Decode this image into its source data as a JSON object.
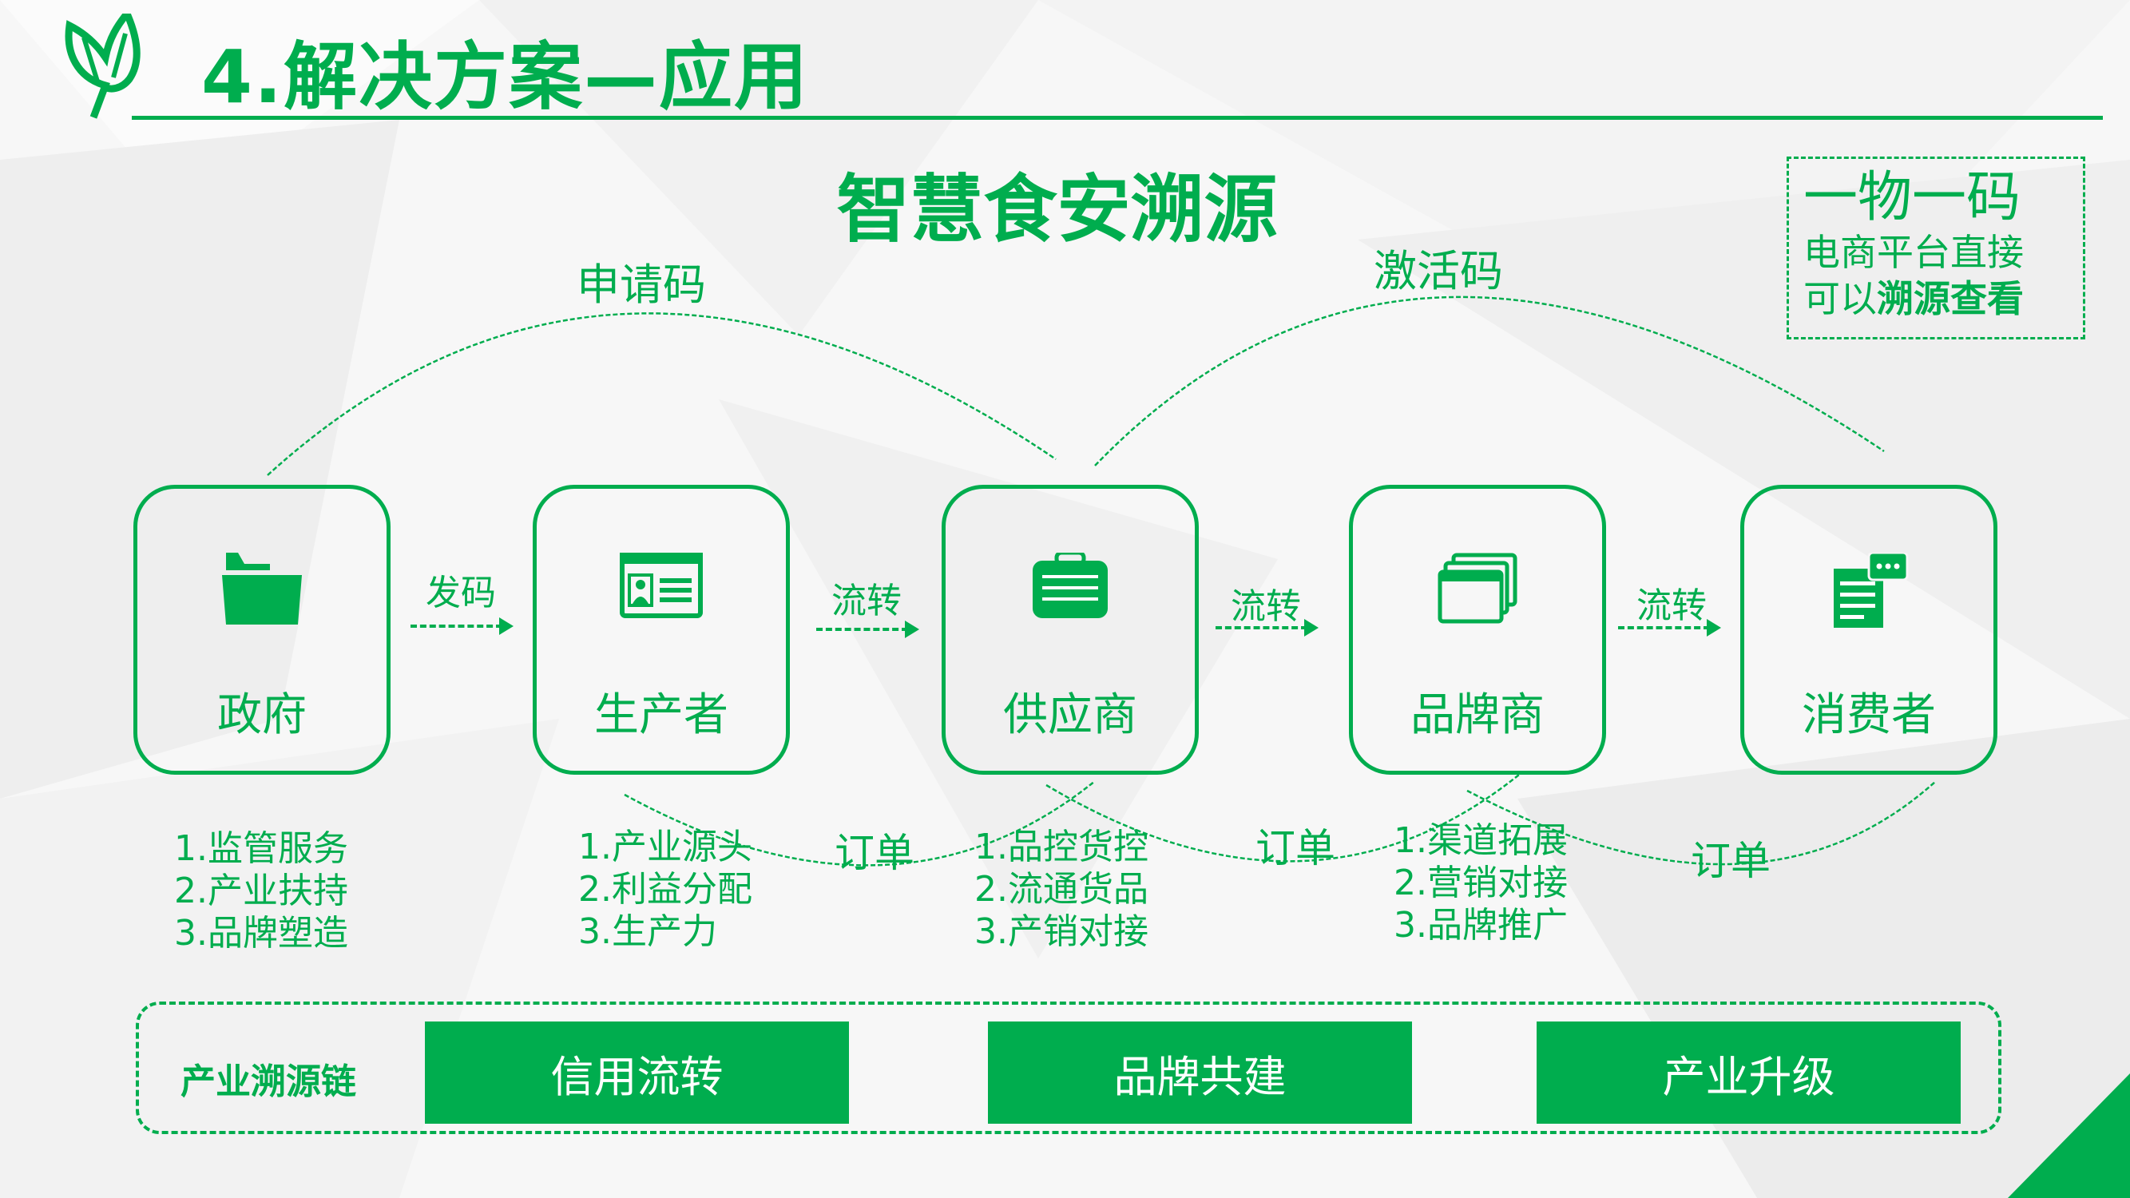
{
  "header": {
    "title": "4.解决方案—应用",
    "logo_icon": "leaf-icon"
  },
  "diagram": {
    "title": "智慧食安溯源",
    "code_note": {
      "line1": "一物一码",
      "line2": "电商平台直接",
      "line3_prefix": "可以",
      "line3_bold": "溯源查看"
    },
    "arc_labels": {
      "apply": "申请码",
      "activate": "激活码"
    },
    "nodes": [
      {
        "label": "政府",
        "icon": "folder-icon",
        "items": [
          "1.监管服务",
          "2.产业扶持",
          "3.品牌塑造"
        ]
      },
      {
        "label": "生产者",
        "icon": "id-card-icon",
        "items": [
          "1.产业源头",
          "2.利益分配",
          "3.生产力"
        ]
      },
      {
        "label": "供应商",
        "icon": "suitcase-icon",
        "items": [
          "1.品控货控",
          "2.流通货品",
          "3.产销对接"
        ]
      },
      {
        "label": "品牌商",
        "icon": "windows-icon",
        "items": [
          "1.渠道拓展",
          "2.营销对接",
          "3.品牌推广"
        ]
      },
      {
        "label": "消费者",
        "icon": "document-chat-icon",
        "items": []
      }
    ],
    "flows": [
      "发码",
      "流转",
      "流转",
      "流转"
    ],
    "orders": [
      "订单",
      "订单",
      "订单"
    ],
    "chain": {
      "label": "产业溯源链",
      "buttons": [
        "信用流转",
        "品牌共建",
        "产业升级"
      ]
    }
  },
  "colors": {
    "accent": "#00ad4e",
    "background": "#f7f7f7"
  }
}
